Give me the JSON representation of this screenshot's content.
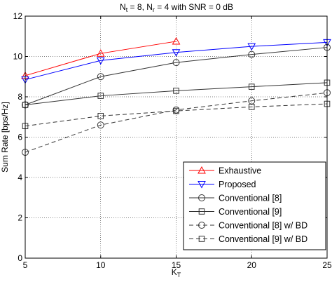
{
  "chart_data": {
    "type": "line",
    "title_parts": {
      "n_t": "N",
      "n_t_sub": "t",
      "middle": " = 8, N",
      "n_r_sub": "r",
      "tail": " = 4 with SNR = 0 dB"
    },
    "xlabel": "K",
    "xlabel_sub": "T",
    "ylabel": "Sum Rate [bps/Hz]",
    "xlim": [
      5,
      25
    ],
    "ylim": [
      0,
      12
    ],
    "xticks": [
      "5",
      "10",
      "15",
      "20",
      "25"
    ],
    "yticks": [
      "0",
      "2",
      "4",
      "6",
      "8",
      "10",
      "12"
    ],
    "grid": true,
    "legend_position": "lower-right",
    "series": [
      {
        "name": "Exhaustive",
        "color": "#ff0000",
        "marker": "triangle-up",
        "dash": "solid",
        "x": [
          5,
          10,
          15
        ],
        "y": [
          9.05,
          10.15,
          10.75
        ]
      },
      {
        "name": "Proposed",
        "color": "#0000ff",
        "marker": "triangle-down",
        "dash": "solid",
        "x": [
          5,
          10,
          15,
          20,
          25
        ],
        "y": [
          8.85,
          9.8,
          10.2,
          10.5,
          10.7
        ]
      },
      {
        "name": "Conventional [8]",
        "color": "#333333",
        "marker": "circle",
        "dash": "solid",
        "x": [
          5,
          10,
          15,
          20,
          25
        ],
        "y": [
          7.6,
          9.0,
          9.7,
          10.1,
          10.45
        ]
      },
      {
        "name": "Conventional [9]",
        "color": "#333333",
        "marker": "square",
        "dash": "solid",
        "x": [
          5,
          10,
          15,
          20,
          25
        ],
        "y": [
          7.6,
          8.05,
          8.3,
          8.5,
          8.7
        ]
      },
      {
        "name": "Conventional [8] w/ BD",
        "color": "#333333",
        "marker": "circle",
        "dash": "dashed",
        "x": [
          5,
          10,
          15,
          20,
          25
        ],
        "y": [
          5.25,
          6.6,
          7.35,
          7.8,
          8.2
        ]
      },
      {
        "name": "Conventional [9] w/ BD",
        "color": "#333333",
        "marker": "square",
        "dash": "dashed",
        "x": [
          5,
          10,
          15,
          20,
          25
        ],
        "y": [
          6.55,
          7.05,
          7.3,
          7.5,
          7.65
        ]
      }
    ]
  }
}
